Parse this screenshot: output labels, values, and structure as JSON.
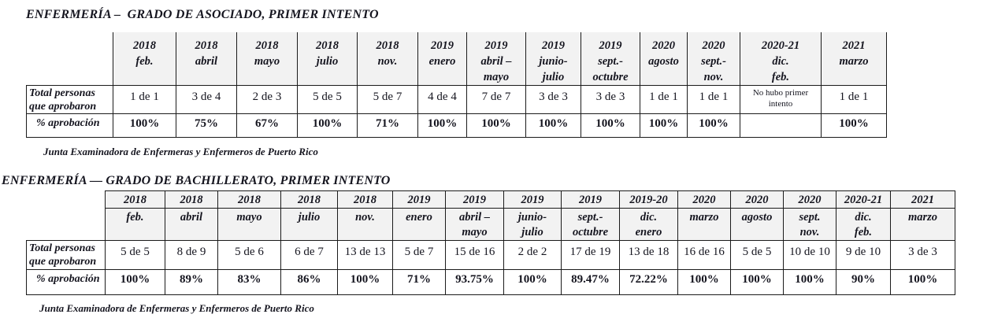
{
  "page": {
    "background": "#ffffff",
    "text_color": "#15151f",
    "header_bg": "#f2f2f2",
    "border_color": "#1b1b1b"
  },
  "table1": {
    "title": "ENFERMERÍA –  GRADO DE ASOCIADO, PRIMER INTENTO",
    "row_label_total": "Total personas que aprobaron",
    "row_label_pct": "% aprobación",
    "columns": [
      {
        "year": "2018",
        "month": "feb.",
        "total": "1 de 1",
        "pct": "100%"
      },
      {
        "year": "2018",
        "month": "abril",
        "total": "3 de 4",
        "pct": "75%"
      },
      {
        "year": "2018",
        "month": "mayo",
        "total": "2 de 3",
        "pct": "67%"
      },
      {
        "year": "2018",
        "month": "julio",
        "total": "5 de 5",
        "pct": "100%"
      },
      {
        "year": "2018",
        "month": "nov.",
        "total": "5 de 7",
        "pct": "71%"
      },
      {
        "year": "2019",
        "month": "enero",
        "total": "4 de 4",
        "pct": "100%"
      },
      {
        "year": "2019",
        "month": "abril –\nmayo",
        "total": "7 de 7",
        "pct": "100%"
      },
      {
        "year": "2019",
        "month": "junio-\njulio",
        "total": "3 de 3",
        "pct": "100%"
      },
      {
        "year": "2019",
        "month": "sept.-\noctubre",
        "total": "3 de 3",
        "pct": "100%"
      },
      {
        "year": "2020",
        "month": "agosto",
        "total": "1 de 1",
        "pct": "100%"
      },
      {
        "year": "2020",
        "month": "sept.-\nnov.",
        "total": "1 de 1",
        "pct": "100%"
      },
      {
        "year": "2020-21",
        "month": "dic.\nfeb.",
        "total": "No hubo primer intento",
        "pct": ""
      },
      {
        "year": "2021",
        "month": "marzo",
        "total": "1 de 1",
        "pct": "100%"
      }
    ],
    "source": "Junta Examinadora de Enfermeras y Enfermeros de Puerto Rico"
  },
  "table2": {
    "title": "ENFERMERÍA — GRADO DE BACHILLERATO, PRIMER INTENTO",
    "row_label_total": "Total personas que aprobaron",
    "row_label_pct": "% aprobación",
    "columns": [
      {
        "year": "2018",
        "month": "feb.",
        "total": "5 de 5",
        "pct": "100%"
      },
      {
        "year": "2018",
        "month": "abril",
        "total": "8 de 9",
        "pct": "89%"
      },
      {
        "year": "2018",
        "month": "mayo",
        "total": "5 de 6",
        "pct": "83%"
      },
      {
        "year": "2018",
        "month": "julio",
        "total": "6 de 7",
        "pct": "86%"
      },
      {
        "year": "2018",
        "month": "nov.",
        "total": "13 de 13",
        "pct": "100%"
      },
      {
        "year": "2019",
        "month": "enero",
        "total": "5 de 7",
        "pct": "71%"
      },
      {
        "year": "2019",
        "month": "abril –\nmayo",
        "total": "15 de 16",
        "pct": "93.75%"
      },
      {
        "year": "2019",
        "month": "junio-\njulio",
        "total": "2 de 2",
        "pct": "100%"
      },
      {
        "year": "2019",
        "month": "sept.-\noctubre",
        "total": "17 de 19",
        "pct": "89.47%"
      },
      {
        "year": "2019-20",
        "month": "dic.\nenero",
        "total": "13 de 18",
        "pct": "72.22%"
      },
      {
        "year": "2020",
        "month": "marzo",
        "total": "16 de 16",
        "pct": "100%"
      },
      {
        "year": "2020",
        "month": "agosto",
        "total": "5 de 5",
        "pct": "100%"
      },
      {
        "year": "2020",
        "month": "sept.\nnov.",
        "total": "10 de 10",
        "pct": "100%"
      },
      {
        "year": "2020-21",
        "month": "dic.\nfeb.",
        "total": "9 de 10",
        "pct": "90%"
      },
      {
        "year": "2021",
        "month": "marzo",
        "total": "3 de 3",
        "pct": "100%"
      }
    ],
    "source": "Junta Examinadora de Enfermeras y Enfermeros de Puerto Rico"
  }
}
